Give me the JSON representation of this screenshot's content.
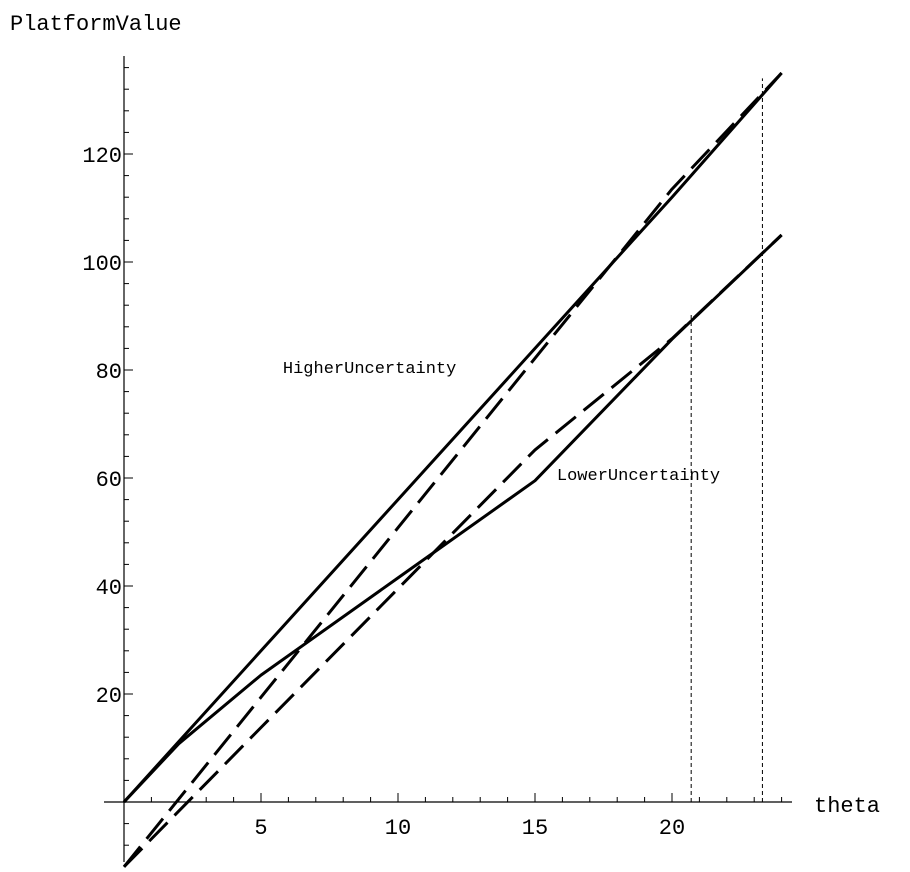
{
  "chart_data": {
    "type": "line",
    "title": "",
    "xlabel": "theta",
    "ylabel": "PlatformValue",
    "xlim": [
      0,
      24
    ],
    "ylim": [
      -12,
      140
    ],
    "x_ticks": [
      5,
      10,
      15,
      20
    ],
    "y_ticks": [
      20,
      40,
      60,
      80,
      100,
      120
    ],
    "grid": false,
    "series": [
      {
        "style": "solid",
        "points": [
          [
            0,
            0
          ],
          [
            5,
            28
          ],
          [
            10,
            56
          ],
          [
            15,
            84
          ],
          [
            20,
            112
          ],
          [
            24,
            135
          ]
        ]
      },
      {
        "style": "dashed",
        "points": [
          [
            0,
            -12
          ],
          [
            5,
            19.4
          ],
          [
            10,
            50.8
          ],
          [
            14,
            75.9
          ],
          [
            20,
            113.5
          ],
          [
            24,
            135
          ]
        ]
      },
      {
        "style": "solid",
        "points": [
          [
            0,
            0
          ],
          [
            2,
            10.8
          ],
          [
            5,
            23.5
          ],
          [
            10,
            41.5
          ],
          [
            15,
            59.5
          ],
          [
            20,
            85.7
          ],
          [
            24,
            105
          ]
        ]
      },
      {
        "style": "dashed",
        "points": [
          [
            0,
            -12
          ],
          [
            5,
            13.8
          ],
          [
            10,
            39.5
          ],
          [
            15,
            65.2
          ],
          [
            20,
            85.8
          ],
          [
            24,
            105
          ]
        ]
      }
    ],
    "annotations": [
      {
        "text": "HigherUncertainty",
        "x": 5.8,
        "y": 79.4
      },
      {
        "text": "LowerUncertainty",
        "x": 15.8,
        "y": 59.6
      }
    ],
    "reference_lines": [
      {
        "x": 20.7,
        "y_top": 90.5,
        "style": "dashed-thin"
      },
      {
        "x": 23.3,
        "y_top": 134,
        "style": "dashed-thin"
      }
    ]
  }
}
